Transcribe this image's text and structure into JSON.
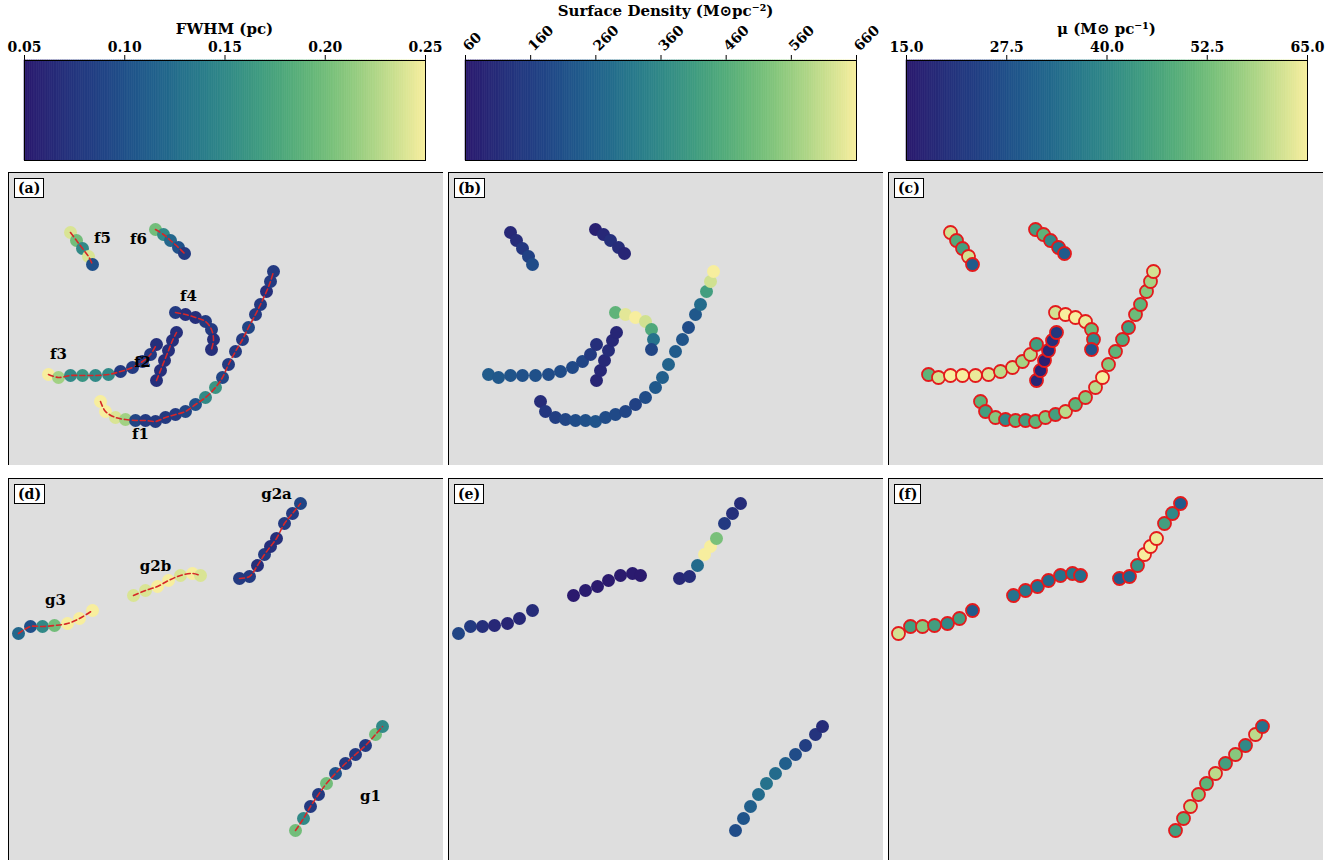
{
  "chart_data": {
    "type": "scatter",
    "tick_labels": false,
    "colorbars": [
      {
        "label": "FWHM (pc)",
        "range": [
          0.05,
          0.25
        ],
        "ticks": [
          {
            "value": 0.05,
            "label": "0.05"
          },
          {
            "value": 0.1,
            "label": "0.10"
          },
          {
            "value": 0.15,
            "label": "0.15"
          },
          {
            "value": 0.2,
            "label": "0.20"
          },
          {
            "value": 0.25,
            "label": "0.25"
          }
        ],
        "line_style": "dashed"
      },
      {
        "label": "Surface Density (M⊙pc⁻²)",
        "range": [
          60,
          660
        ],
        "ticks": [
          60,
          160,
          260,
          360,
          460,
          560,
          660
        ]
      },
      {
        "label": "μ (M⊙ pc⁻¹)",
        "range": [
          15,
          65
        ],
        "ticks": [
          {
            "value": 15,
            "label": "15.0"
          },
          {
            "value": 27.5,
            "label": "27.5"
          },
          {
            "value": 40,
            "label": "40.0"
          },
          {
            "value": 52.5,
            "label": "52.5"
          },
          {
            "value": 65,
            "label": "65.0"
          }
        ],
        "marker": "ringed"
      }
    ],
    "rows": [
      {
        "letters": [
          "(a)",
          "(b)",
          "(c)"
        ],
        "xlim": [
          0,
          435
        ],
        "ylim": [
          293,
          0
        ],
        "filaments": [
          {
            "name": "f1",
            "label_pos": [
              132,
              262
            ],
            "x": [
              92,
              97,
              107,
              117,
              127,
              137,
              147,
              157,
              167,
              177,
              187,
              197,
              207,
              214,
              220,
              227,
              234,
              240,
              247,
              252,
              258,
              262,
              265
            ],
            "y": [
              229,
              239,
              245,
              247,
              248,
              248,
              249,
              245,
              242,
              239,
              232,
              225,
              215,
              205,
              192,
              179,
              167,
              155,
              142,
              132,
              119,
              109,
              99
            ],
            "values": [
              [
                0.25,
                0.25,
                0.24,
                0.22,
                0.09,
                0.08,
                0.08,
                0.08,
                0.08,
                0.09,
                0.1,
                0.15,
                0.16,
                0.09,
                0.08,
                0.08,
                0.08,
                0.09,
                0.08,
                0.08,
                0.07,
                0.08,
                0.08
              ],
              [
                110,
                140,
                160,
                180,
                200,
                210,
                220,
                200,
                190,
                180,
                170,
                200,
                230,
                250,
                260,
                240,
                220,
                200,
                230,
                280,
                420,
                620,
                660
              ],
              [
                50,
                45,
                55,
                40,
                50,
                45,
                50,
                55,
                45,
                60,
                50,
                55,
                60,
                65,
                55,
                50,
                48,
                45,
                52,
                50,
                55,
                58,
                62
              ]
            ]
          },
          {
            "name": "f2",
            "label_pos": [
              134,
              190
            ],
            "x": [
              148,
              152,
              156,
              160,
              164,
              168
            ],
            "y": [
              208,
              198,
              188,
              178,
              168,
              160
            ],
            "values": [
              [
                0.07,
                0.07,
                0.07,
                0.07,
                0.07,
                0.07
              ],
              [
                90,
                95,
                100,
                110,
                100,
                95
              ],
              [
                18,
                17,
                16,
                18,
                20,
                22
              ]
            ]
          },
          {
            "name": "f3",
            "label_pos": [
              50,
              182
            ],
            "x": [
              40,
              50,
              62,
              74,
              87,
              100,
              112,
              124,
              134,
              142,
              148
            ],
            "y": [
              202,
              205,
              203,
              203,
              203,
              202,
              199,
              195,
              189,
              182,
              172
            ],
            "values": [
              [
                0.25,
                0.22,
                0.15,
                0.16,
                0.15,
                0.15,
                0.08,
                0.08,
                0.08,
                0.08,
                0.07
              ],
              [
                240,
                230,
                220,
                210,
                210,
                200,
                200,
                190,
                180,
                150,
                120
              ],
              [
                50,
                62,
                65,
                65,
                64,
                63,
                60,
                62,
                58,
                60,
                45
              ]
            ]
          },
          {
            "name": "f4",
            "label_pos": [
              180,
              124
            ],
            "x": [
              167,
              177,
              187,
              197,
              203,
              205,
              203
            ],
            "y": [
              140,
              142,
              145,
              149,
              157,
              167,
              177
            ],
            "values": [
              [
                0.08,
                0.07,
                0.07,
                0.08,
                0.08,
                0.07,
                0.07
              ],
              [
                480,
                640,
                660,
                620,
                450,
                300,
                180
              ],
              [
                62,
                65,
                65,
                64,
                52,
                40,
                28
              ]
            ]
          },
          {
            "name": "f5",
            "label_pos": [
              94,
              66
            ],
            "x": [
              62,
              68,
              74,
              80,
              84
            ],
            "y": [
              60,
              68,
              76,
              84,
              92
            ],
            "values": [
              [
                0.24,
                0.2,
                0.15,
                0.24,
                0.1
              ],
              [
                100,
                110,
                140,
                170,
                200
              ],
              [
                62,
                48,
                45,
                62,
                30
              ]
            ]
          },
          {
            "name": "f6",
            "label_pos": [
              130,
              67
            ],
            "x": [
              147,
              155,
              162,
              170,
              176
            ],
            "y": [
              57,
              62,
              68,
              75,
              81
            ],
            "values": [
              [
                0.2,
                0.15,
                0.12,
                0.1,
                0.08
              ],
              [
                80,
                100,
                120,
                110,
                90
              ],
              [
                45,
                50,
                40,
                35,
                30
              ]
            ]
          }
        ]
      },
      {
        "letters": [
          "(d)",
          "(e)",
          "(f)"
        ],
        "xlim": [
          0,
          435
        ],
        "ylim": [
          382,
          0
        ],
        "filaments": [
          {
            "name": "g1",
            "label_pos": [
              362,
              318
            ],
            "x": [
              287,
              295,
              302,
              310,
              318,
              327,
              337,
              347,
              357,
              367,
              374
            ],
            "y": [
              352,
              340,
              328,
              316,
              305,
              295,
              285,
              276,
              267,
              256,
              248
            ],
            "values": [
              [
                0.2,
                0.15,
                0.08,
                0.08,
                0.2,
                0.1,
                0.08,
                0.08,
                0.08,
                0.2,
                0.15
              ],
              [
                200,
                220,
                250,
                280,
                300,
                280,
                250,
                200,
                160,
                130,
                110
              ],
              [
                45,
                50,
                60,
                55,
                50,
                60,
                45,
                55,
                40,
                60,
                35
              ]
            ]
          },
          {
            "name": "g2a",
            "label_pos": [
              268,
              16
            ],
            "x": [
              231,
              241,
              249,
              256,
              262,
              268,
              276,
              284,
              292
            ],
            "y": [
              100,
              98,
              87,
              76,
              68,
              60,
              45,
              35,
              25
            ],
            "values": [
              [
                0.08,
                0.08,
                0.07,
                0.08,
                0.07,
                0.07,
                0.08,
                0.08,
                0.09
              ],
              [
                100,
                110,
                280,
                660,
                660,
                520,
                150,
                120,
                110
              ],
              [
                30,
                32,
                42,
                65,
                65,
                64,
                45,
                40,
                30
              ]
            ]
          },
          {
            "name": "g2b",
            "label_pos": [
              147,
              88
            ],
            "x": [
              125,
              137,
              149,
              160,
              172,
              184,
              192
            ],
            "y": [
              117,
              112,
              108,
              102,
              97,
              95,
              97
            ],
            "values": [
              [
                0.24,
                0.24,
                0.25,
                0.25,
                0.24,
                0.25,
                0.24
              ],
              [
                60,
                65,
                62,
                60,
                62,
                64,
                60
              ],
              [
                35,
                36,
                34,
                33,
                35,
                36,
                34
              ]
            ]
          },
          {
            "name": "g3",
            "label_pos": [
              47,
              122
            ],
            "x": [
              10,
              22,
              34,
              46,
              59,
              71,
              84
            ],
            "y": [
              155,
              148,
              148,
              147,
              145,
              140,
              132
            ],
            "values": [
              [
                0.12,
                0.1,
                0.15,
                0.2,
                0.25,
                0.25,
                0.25
              ],
              [
                180,
                150,
                120,
                100,
                90,
                100,
                110
              ],
              [
                62,
                45,
                55,
                45,
                40,
                45,
                30
              ]
            ]
          }
        ]
      }
    ]
  }
}
